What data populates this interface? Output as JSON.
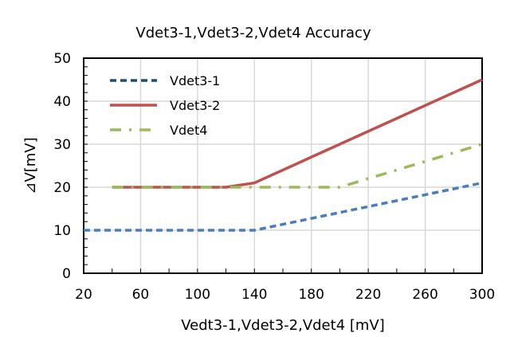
{
  "chart_data": {
    "type": "line",
    "title": "Vdet3-1,Vdet3-2,Vdet4 Accuracy",
    "xlabel": "Vedt3-1,Vdet3-2,Vdet4 [mV]",
    "ylabel": "⊿V[mV]",
    "xlim": [
      20,
      300
    ],
    "ylim": [
      0,
      50
    ],
    "xticks": [
      20,
      60,
      100,
      140,
      180,
      220,
      260,
      300
    ],
    "yticks": [
      0,
      10,
      20,
      30,
      40,
      50
    ],
    "grid": true,
    "legend_position": "top-left",
    "series": [
      {
        "name": "Vdet3-1",
        "color": "#4a7ebb",
        "legend_color": "#1f4e79",
        "dash": "dashed",
        "x": [
          20,
          140,
          300
        ],
        "y": [
          10,
          10,
          21
        ]
      },
      {
        "name": "Vdet3-2",
        "color": "#c0504d",
        "dash": "solid",
        "x": [
          40,
          120,
          140,
          300
        ],
        "y": [
          20,
          20,
          21,
          45
        ]
      },
      {
        "name": "Vdet4",
        "color": "#9bbb59",
        "dash": "dash-dot",
        "x": [
          40,
          200,
          300
        ],
        "y": [
          20,
          20,
          30
        ]
      }
    ]
  }
}
